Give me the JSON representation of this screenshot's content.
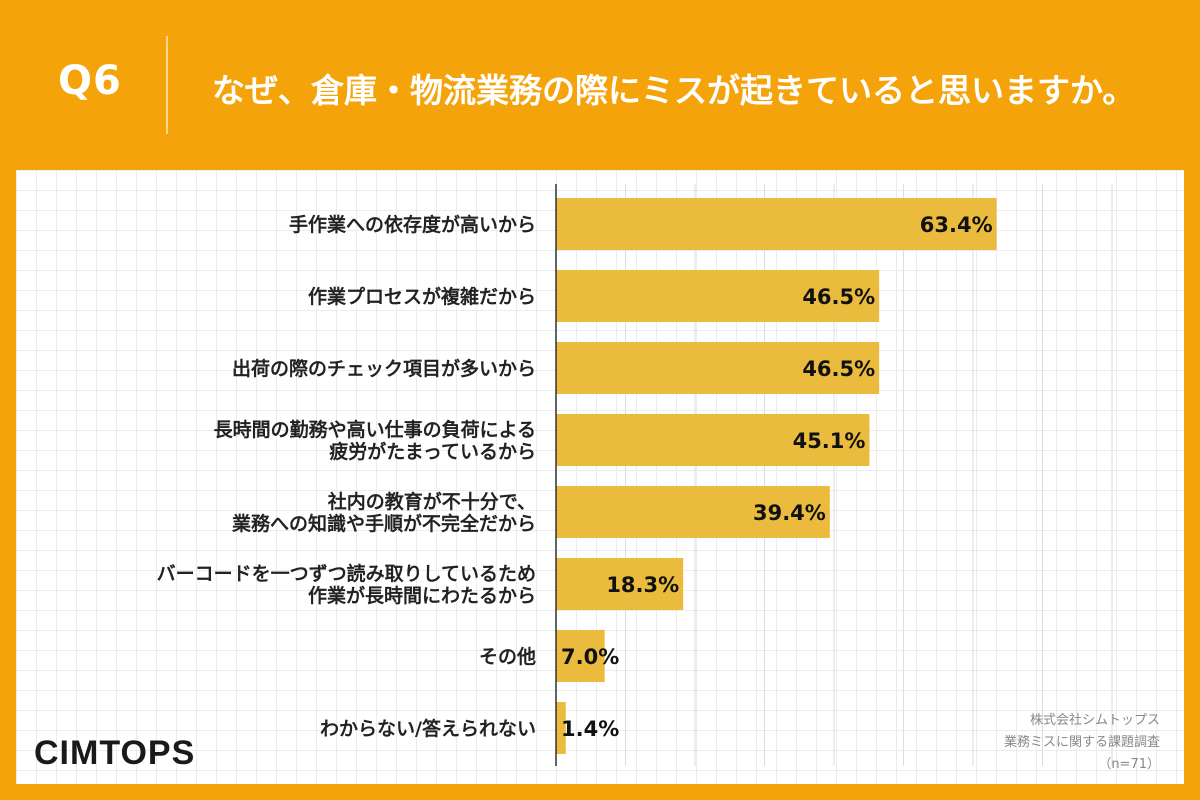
{
  "header": {
    "question_number": "Q6",
    "question_text": "なぜ、倉庫・物流業務の際にミスが起きていると思いますか。"
  },
  "logo": "CIMTOPS",
  "source": {
    "company": "株式会社シムトップス",
    "survey": "業務ミスに関する課題調査",
    "sample": "（n=71）"
  },
  "colors": {
    "background": "#f5a30a",
    "bar": "#ebbb3e"
  },
  "chart_data": {
    "type": "bar",
    "orientation": "horizontal",
    "categories": [
      [
        "手作業への依存度が高いから"
      ],
      [
        "作業プロセスが複雑だから"
      ],
      [
        "出荷の際のチェック項目が多いから"
      ],
      [
        "長時間の勤務や高い仕事の負荷による",
        "疲労がたまっているから"
      ],
      [
        "社内の教育が不十分で、",
        "業務への知識や手順が不完全だから"
      ],
      [
        "バーコードを一つずつ読み取りしているため",
        "作業が長時間にわたるから"
      ],
      [
        "その他"
      ],
      [
        "わからない/答えられない"
      ]
    ],
    "values": [
      63.4,
      46.5,
      46.5,
      45.1,
      39.4,
      18.3,
      7.0,
      1.4
    ],
    "value_labels": [
      "63.4%",
      "46.5%",
      "46.5%",
      "45.1%",
      "39.4%",
      "18.3%",
      "7.0%",
      "1.4%"
    ],
    "xlim": [
      0,
      80
    ],
    "grid": true
  }
}
